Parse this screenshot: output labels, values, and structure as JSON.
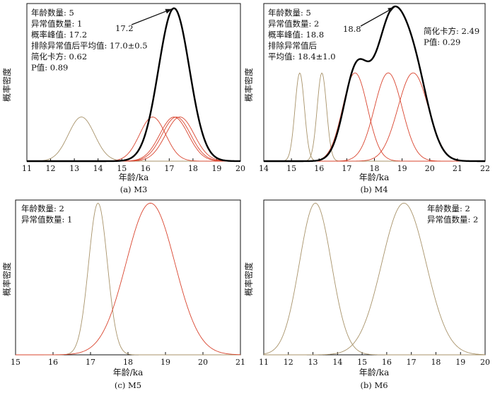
{
  "chart_data": [
    {
      "type": "line",
      "caption": "(a) M3",
      "xlabel": "年龄/ka",
      "ylabel": "概率密度",
      "xlim": [
        11,
        20
      ],
      "xticks": [
        11,
        12,
        13,
        14,
        15,
        16,
        17,
        18,
        19,
        20
      ],
      "stats": [
        "年龄数量: 5",
        "异常值数量: 1",
        "概率峰值: 17.2",
        "排除异常值后平均值: 17.0±0.5",
        "简化卡方: 0.62",
        "P值: 0.89"
      ],
      "stats_position": "top-left",
      "annotation": {
        "text": "17.2",
        "x": 17.2,
        "arrow": true
      },
      "colors": {
        "sum": "#000000",
        "accepted": "#d9442e",
        "outlier": "#a8936a"
      },
      "series": [
        {
          "kind": "outlier",
          "mu": 13.3,
          "sigma": 0.55,
          "peak": 0.28
        },
        {
          "kind": "accepted",
          "mu": 16.3,
          "sigma": 0.55,
          "peak": 0.28
        },
        {
          "kind": "accepted",
          "mu": 17.2,
          "sigma": 0.6,
          "peak": 0.28
        },
        {
          "kind": "accepted",
          "mu": 17.3,
          "sigma": 0.6,
          "peak": 0.28
        },
        {
          "kind": "accepted",
          "mu": 17.45,
          "sigma": 0.6,
          "peak": 0.28
        },
        {
          "kind": "sum",
          "mu": 17.2,
          "sigma": 0.65,
          "peak": 0.97
        }
      ]
    },
    {
      "type": "line",
      "caption": "(b) M4",
      "xlabel": "年龄/ka",
      "ylabel": "概率密度",
      "xlim": [
        14,
        22
      ],
      "xticks": [
        14,
        15,
        16,
        17,
        18,
        19,
        20,
        21,
        22
      ],
      "stats": [
        "年龄数量: 5",
        "异常值数量: 2",
        "概率峰值: 18.8",
        "排除异常值后",
        "平均值: 18.4±1.0"
      ],
      "stats_position": "top-left",
      "stats2": [
        "简化卡方: 2.49",
        "P值: 0.29"
      ],
      "stats2_position": "top-right",
      "annotation": {
        "text": "18.8",
        "x": 18.8,
        "arrow": true
      },
      "colors": {
        "sum": "#000000",
        "accepted": "#d9442e",
        "outlier": "#a8936a"
      },
      "series": [
        {
          "kind": "outlier",
          "mu": 15.3,
          "sigma": 0.17,
          "peak": 0.56
        },
        {
          "kind": "outlier",
          "mu": 16.1,
          "sigma": 0.17,
          "peak": 0.56
        },
        {
          "kind": "accepted",
          "mu": 17.3,
          "sigma": 0.45,
          "peak": 0.56
        },
        {
          "kind": "accepted",
          "mu": 18.5,
          "sigma": 0.5,
          "peak": 0.56
        },
        {
          "kind": "accepted",
          "mu": 19.4,
          "sigma": 0.55,
          "peak": 0.56
        },
        {
          "kind": "sum",
          "components": [
            {
              "mu": 17.35,
              "sigma": 0.45,
              "peak": 0.58
            },
            {
              "mu": 18.5,
              "sigma": 0.5,
              "peak": 0.72
            },
            {
              "mu": 19.35,
              "sigma": 0.55,
              "peak": 0.62
            }
          ]
        }
      ]
    },
    {
      "type": "line",
      "caption": "(c) M5",
      "xlabel": "年龄/ka",
      "ylabel": "概率密度",
      "xlim": [
        15,
        21
      ],
      "xticks": [
        15,
        16,
        17,
        18,
        19,
        20,
        21
      ],
      "stats": [
        "年龄数量: 2",
        "异常值数量: 1"
      ],
      "stats_position": "top-left",
      "colors": {
        "accepted": "#d9442e",
        "outlier": "#a8936a"
      },
      "series": [
        {
          "kind": "outlier",
          "mu": 17.2,
          "sigma": 0.25,
          "peak": 0.98
        },
        {
          "kind": "accepted",
          "mu": 18.6,
          "sigma": 0.65,
          "peak": 0.98
        }
      ]
    },
    {
      "type": "line",
      "caption": "(b) M6",
      "xlabel": "年龄/ka",
      "ylabel": "概率密度",
      "xlim": [
        11,
        20
      ],
      "xticks": [
        11,
        12,
        13,
        14,
        15,
        16,
        17,
        18,
        19,
        20
      ],
      "stats": [
        "年龄数量: 2",
        "异常值数量: 2"
      ],
      "stats_position": "top-right",
      "colors": {
        "outlier": "#a8936a"
      },
      "series": [
        {
          "kind": "outlier",
          "mu": 13.1,
          "sigma": 0.65,
          "peak": 0.98
        },
        {
          "kind": "outlier",
          "mu": 16.7,
          "sigma": 0.9,
          "peak": 0.98
        }
      ]
    }
  ]
}
